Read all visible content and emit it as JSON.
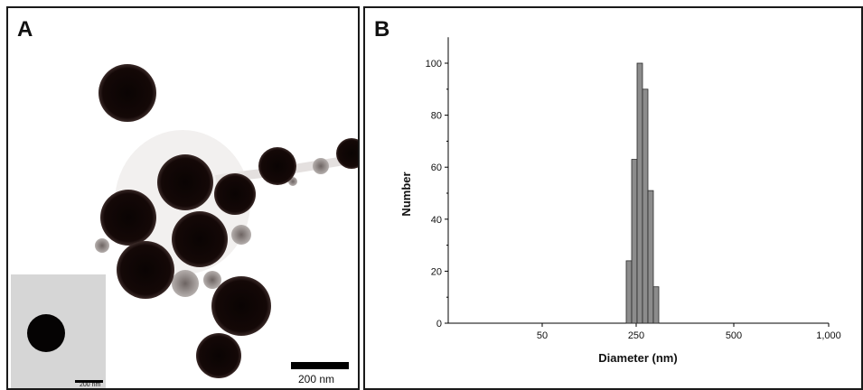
{
  "panel_a": {
    "letter": "A",
    "scale_bar_label": "200 nm",
    "inset_scale_bar_label": "200 nm"
  },
  "panel_b": {
    "letter": "B"
  },
  "chart_data": {
    "type": "bar",
    "title": "",
    "xlabel": "Diameter (nm)",
    "ylabel": "Number",
    "ylim": [
      0,
      110
    ],
    "yticks": [
      0,
      20,
      40,
      60,
      80,
      100
    ],
    "xtick_labels": [
      "50",
      "250",
      "500",
      "1,000"
    ],
    "categories": [
      "~245",
      "~255",
      "~265",
      "~275",
      "~285",
      "~295",
      "~305"
    ],
    "values": [
      24,
      63,
      100,
      90,
      51,
      14,
      0
    ],
    "bar_color": "#8c8c8c",
    "grid": false
  }
}
